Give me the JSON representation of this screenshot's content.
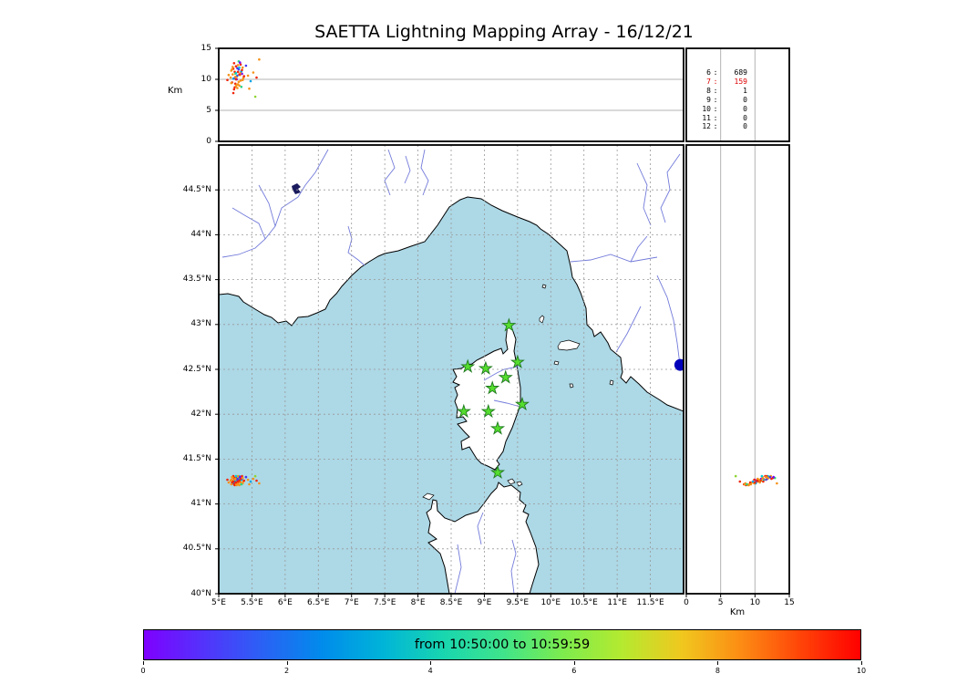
{
  "title": "SAETTA Lightning Mapping Array - 16/12/21",
  "colors": {
    "sea": "#add8e6",
    "land": "#ffffff",
    "coast": "#000000",
    "river": "#6b74d8",
    "grid": "#999999",
    "grid_solid": "#b3b3b3",
    "station_fill": "#55dd2e",
    "station_edge": "#1f7a1f",
    "blue_marker": "#0000bb",
    "highlight_count": "#dd0000"
  },
  "top_panel": {
    "axis_label": "Km",
    "range": [
      0,
      15
    ],
    "gridlines": [
      5,
      10
    ],
    "ticks": [
      {
        "value": 0,
        "label": "0"
      },
      {
        "value": 5,
        "label": "5"
      },
      {
        "value": 10,
        "label": "10"
      },
      {
        "value": 15,
        "label": "15"
      }
    ]
  },
  "counts_panel": {
    "gridlines": [
      5,
      10
    ],
    "rows": [
      {
        "station": "6",
        "count": "689",
        "color": "#000000"
      },
      {
        "station": "7",
        "count": "159",
        "color": "#dd0000"
      },
      {
        "station": "8",
        "count": "1",
        "color": "#000000"
      },
      {
        "station": "9",
        "count": "0",
        "color": "#000000"
      },
      {
        "station": "10",
        "count": "0",
        "color": "#000000"
      },
      {
        "station": "11",
        "count": "0",
        "color": "#000000"
      },
      {
        "station": "12",
        "count": "0",
        "color": "#000000"
      }
    ]
  },
  "map": {
    "lon_range": [
      5,
      12
    ],
    "lat_range": [
      40,
      45
    ],
    "lon_ticks": [
      {
        "value": 5,
        "label": "5°E"
      },
      {
        "value": 5.5,
        "label": "5.5°E"
      },
      {
        "value": 6,
        "label": "6°E"
      },
      {
        "value": 6.5,
        "label": "6.5°E"
      },
      {
        "value": 7,
        "label": "7°E"
      },
      {
        "value": 7.5,
        "label": "7.5°E"
      },
      {
        "value": 8,
        "label": "8°E"
      },
      {
        "value": 8.5,
        "label": "8.5°E"
      },
      {
        "value": 9,
        "label": "9°E"
      },
      {
        "value": 9.5,
        "label": "9.5°E"
      },
      {
        "value": 10,
        "label": "10°E"
      },
      {
        "value": 10.5,
        "label": "10.5°E"
      },
      {
        "value": 11,
        "label": "11°E"
      },
      {
        "value": 11.5,
        "label": "11.5°E"
      }
    ],
    "lat_ticks": [
      {
        "value": 40,
        "label": "40°N"
      },
      {
        "value": 40.5,
        "label": "40.5°N"
      },
      {
        "value": 41,
        "label": "41°N"
      },
      {
        "value": 41.5,
        "label": "41.5°N"
      },
      {
        "value": 42,
        "label": "42°N"
      },
      {
        "value": 42.5,
        "label": "42.5°N"
      },
      {
        "value": 43,
        "label": "43°N"
      },
      {
        "value": 43.5,
        "label": "43.5°N"
      },
      {
        "value": 44,
        "label": "44°N"
      },
      {
        "value": 44.5,
        "label": "44.5°N"
      }
    ]
  },
  "right_panel": {
    "axis_label": "Km",
    "range": [
      0,
      15
    ],
    "gridlines": [
      5,
      10
    ],
    "ticks": [
      {
        "value": 0,
        "label": "0"
      },
      {
        "value": 5,
        "label": "5"
      },
      {
        "value": 10,
        "label": "10"
      },
      {
        "value": 15,
        "label": "15"
      }
    ]
  },
  "colorbar": {
    "label": "from 10:50:00 to 10:59:59",
    "ticks": [
      "0",
      "2",
      "4",
      "6",
      "8",
      "10"
    ],
    "gradient": [
      "#7f00ff",
      "#5333fb",
      "#2a62f5",
      "#008ceb",
      "#00b4d8",
      "#18d6b0",
      "#3fe48c",
      "#7cec4e",
      "#b4ea30",
      "#f0c81e",
      "#fc8c14",
      "#ff4408",
      "#ff0000"
    ]
  },
  "chart_data": {
    "type": "scatter",
    "title": "SAETTA Lightning Mapping Array - 16/12/21",
    "time_window": "from 10:50:00 to 10:59:59",
    "colorbar_range": [
      0,
      10
    ],
    "panels": [
      {
        "name": "altitude-vs-longitude",
        "xlim_deg_E": [
          5,
          12
        ],
        "ylim_km": [
          0,
          15
        ],
        "ylabel": "Km"
      },
      {
        "name": "plan-view-map",
        "xlim_deg_E": [
          5,
          12
        ],
        "ylim_deg_N": [
          40,
          45
        ]
      },
      {
        "name": "altitude-vs-latitude",
        "xlim_km": [
          0,
          15
        ],
        "ylim_deg_N": [
          40,
          45
        ],
        "xlabel": "Km"
      },
      {
        "name": "station-contribution-counts",
        "counts": {
          "6": 689,
          "7": 159,
          "8": 1,
          "9": 0,
          "10": 0,
          "11": 0,
          "12": 0
        }
      }
    ],
    "palette": [
      "#7a00f5",
      "#4338f0",
      "#2a62f5",
      "#00a4e8",
      "#00cfd6",
      "#2bd489",
      "#8fd432",
      "#e8d122",
      "#f59118",
      "#f0250a"
    ],
    "stations": [
      {
        "lon": 9.37,
        "lat": 42.99
      },
      {
        "lon": 9.5,
        "lat": 42.58
      },
      {
        "lon": 8.75,
        "lat": 42.53
      },
      {
        "lon": 9.02,
        "lat": 42.51
      },
      {
        "lon": 9.32,
        "lat": 42.41
      },
      {
        "lon": 9.12,
        "lat": 42.29
      },
      {
        "lon": 9.57,
        "lat": 42.11
      },
      {
        "lon": 8.69,
        "lat": 42.03
      },
      {
        "lon": 9.06,
        "lat": 42.03
      },
      {
        "lon": 9.2,
        "lat": 41.84
      },
      {
        "lon": 9.2,
        "lat": 41.35
      }
    ],
    "sources_format": [
      "lon_deg_E",
      "lat_deg_N",
      "alt_km",
      "palette_index"
    ],
    "sources": [
      [
        5.21,
        41.26,
        10.8,
        8
      ],
      [
        5.24,
        41.28,
        11.2,
        9
      ],
      [
        5.27,
        41.25,
        10.4,
        8
      ],
      [
        5.3,
        41.27,
        11.6,
        1
      ],
      [
        5.33,
        41.24,
        9.8,
        8
      ],
      [
        5.22,
        41.23,
        10.1,
        3
      ],
      [
        5.26,
        41.3,
        12.1,
        9
      ],
      [
        5.29,
        41.22,
        9.2,
        8
      ],
      [
        5.35,
        41.28,
        10.9,
        0
      ],
      [
        5.19,
        41.27,
        11.4,
        8
      ],
      [
        5.24,
        41.21,
        8.7,
        9
      ],
      [
        5.31,
        41.31,
        11.9,
        4
      ],
      [
        5.37,
        41.25,
        10.2,
        8
      ],
      [
        5.23,
        41.29,
        12.6,
        9
      ],
      [
        5.28,
        41.26,
        10.6,
        2
      ],
      [
        5.33,
        41.3,
        11.1,
        8
      ],
      [
        5.2,
        41.24,
        9.5,
        9
      ],
      [
        5.26,
        41.22,
        8.9,
        8
      ],
      [
        5.3,
        41.29,
        12.9,
        5
      ],
      [
        5.36,
        41.23,
        9.9,
        8
      ],
      [
        5.22,
        41.31,
        11.7,
        9
      ],
      [
        5.27,
        41.27,
        10.0,
        0
      ],
      [
        5.32,
        41.25,
        10.7,
        8
      ],
      [
        5.25,
        41.24,
        9.3,
        9
      ],
      [
        5.29,
        41.31,
        12.3,
        8
      ],
      [
        5.34,
        41.27,
        11.3,
        3
      ],
      [
        5.18,
        41.26,
        10.3,
        8
      ],
      [
        5.23,
        41.22,
        8.4,
        9
      ],
      [
        5.28,
        41.28,
        11.8,
        1
      ],
      [
        5.31,
        41.21,
        9.0,
        8
      ],
      [
        5.38,
        41.26,
        10.5,
        9
      ],
      [
        5.21,
        41.29,
        12.0,
        8
      ],
      [
        5.25,
        41.26,
        10.9,
        6
      ],
      [
        5.3,
        41.24,
        9.6,
        8
      ],
      [
        5.35,
        41.31,
        11.5,
        9
      ],
      [
        5.24,
        41.25,
        10.2,
        2
      ],
      [
        5.28,
        41.23,
        8.6,
        8
      ],
      [
        5.33,
        41.28,
        12.4,
        9
      ],
      [
        5.19,
        41.22,
        9.4,
        8
      ],
      [
        5.26,
        41.31,
        11.0,
        4
      ],
      [
        5.31,
        41.26,
        10.8,
        9
      ],
      [
        5.36,
        41.29,
        11.9,
        8
      ],
      [
        5.22,
        41.25,
        7.8,
        9
      ],
      [
        5.27,
        41.21,
        9.1,
        8
      ],
      [
        5.32,
        41.3,
        12.7,
        0
      ],
      [
        5.25,
        41.28,
        10.4,
        8
      ],
      [
        5.29,
        41.25,
        11.2,
        9
      ],
      [
        5.34,
        41.22,
        8.8,
        5
      ],
      [
        5.2,
        41.3,
        11.6,
        8
      ],
      [
        5.26,
        41.24,
        10.0,
        9
      ],
      [
        5.44,
        41.27,
        10.6,
        8
      ],
      [
        5.48,
        41.25,
        9.7,
        3
      ],
      [
        5.52,
        41.28,
        11.1,
        8
      ],
      [
        5.57,
        41.26,
        10.3,
        9
      ],
      [
        5.41,
        41.3,
        12.2,
        1
      ],
      [
        5.46,
        41.22,
        8.5,
        8
      ],
      [
        5.13,
        41.27,
        9.9,
        9
      ],
      [
        5.15,
        41.24,
        10.7,
        8
      ],
      [
        5.55,
        41.31,
        7.2,
        6
      ],
      [
        5.61,
        41.23,
        13.2,
        8
      ]
    ],
    "blue_marker": {
      "lon": 11.95,
      "lat": 42.55
    }
  }
}
